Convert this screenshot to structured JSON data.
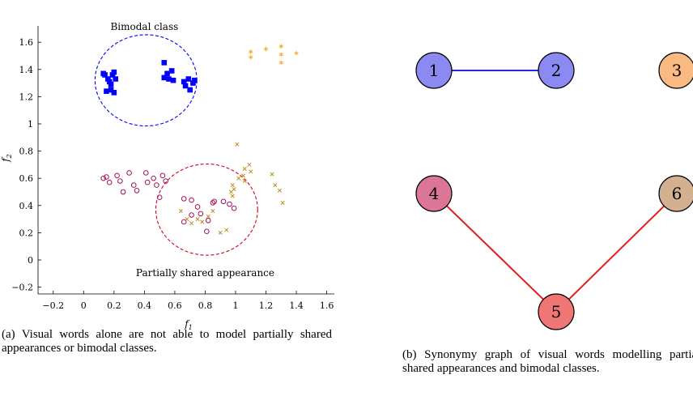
{
  "chart_data": [
    {
      "type": "scatter",
      "title": "",
      "xlabel": "f1",
      "ylabel": "f2",
      "xlim": [
        -0.3,
        1.65
      ],
      "ylim": [
        -0.25,
        1.72
      ],
      "xticks": [
        -0.2,
        0,
        0.2,
        0.4,
        0.6,
        0.8,
        1,
        1.2,
        1.4,
        1.6
      ],
      "yticks": [
        -0.2,
        0,
        0.2,
        0.4,
        0.6,
        0.8,
        1,
        1.2,
        1.4,
        1.6
      ],
      "xtick_labels": [
        "−0.2",
        "0",
        "0.2",
        "0.4",
        "0.6",
        "0.8",
        "1",
        "1.2",
        "1.4",
        "1.6"
      ],
      "ytick_labels": [
        "−0.2",
        "0",
        "0.2",
        "0.4",
        "0.6",
        "0.8",
        "1",
        "1.2",
        "1.4",
        "1.6"
      ],
      "grid": false,
      "annotations": [
        {
          "text": "Bimodal class",
          "x": 0.4,
          "y": 1.69
        },
        {
          "text": "Partially shared appearance",
          "x": 0.8,
          "y": -0.12
        }
      ],
      "circles": [
        {
          "cx": 0.41,
          "cy": 1.32,
          "r": 0.335,
          "color": "#0000ff",
          "style": "dashed"
        },
        {
          "cx": 0.81,
          "cy": 0.37,
          "r": 0.335,
          "color": "#d0021b",
          "style": "dashed"
        }
      ],
      "series": [
        {
          "marker": "square",
          "color": "#0000ff",
          "points": [
            [
              0.14,
              1.36
            ],
            [
              0.16,
              1.33
            ],
            [
              0.19,
              1.36
            ],
            [
              0.2,
              1.38
            ],
            [
              0.17,
              1.31
            ],
            [
              0.21,
              1.33
            ],
            [
              0.18,
              1.29
            ],
            [
              0.15,
              1.24
            ],
            [
              0.18,
              1.25
            ],
            [
              0.2,
              1.23
            ],
            [
              0.13,
              1.37
            ],
            [
              0.53,
              1.45
            ],
            [
              0.55,
              1.37
            ],
            [
              0.58,
              1.39
            ],
            [
              0.53,
              1.34
            ],
            [
              0.56,
              1.33
            ],
            [
              0.59,
              1.32
            ],
            [
              0.66,
              1.31
            ],
            [
              0.69,
              1.33
            ],
            [
              0.72,
              1.3
            ],
            [
              0.73,
              1.32
            ],
            [
              0.67,
              1.28
            ],
            [
              0.7,
              1.25
            ]
          ]
        },
        {
          "marker": "asterisk",
          "color": "#f5a623",
          "points": [
            [
              1.1,
              1.53
            ],
            [
              1.2,
              1.55
            ],
            [
              1.3,
              1.57
            ],
            [
              1.3,
              1.51
            ],
            [
              1.4,
              1.52
            ],
            [
              1.1,
              1.49
            ],
            [
              1.3,
              1.45
            ]
          ]
        },
        {
          "marker": "circle",
          "color": "#a3125a",
          "points": [
            [
              0.15,
              0.61
            ],
            [
              0.17,
              0.57
            ],
            [
              0.13,
              0.6
            ],
            [
              0.22,
              0.62
            ],
            [
              0.24,
              0.58
            ],
            [
              0.26,
              0.5
            ],
            [
              0.3,
              0.64
            ],
            [
              0.33,
              0.55
            ],
            [
              0.35,
              0.51
            ],
            [
              0.41,
              0.64
            ],
            [
              0.42,
              0.57
            ],
            [
              0.46,
              0.6
            ],
            [
              0.48,
              0.55
            ],
            [
              0.52,
              0.62
            ],
            [
              0.54,
              0.58
            ],
            [
              0.5,
              0.46
            ],
            [
              0.66,
              0.45
            ],
            [
              0.71,
              0.44
            ],
            [
              0.75,
              0.39
            ],
            [
              0.77,
              0.34
            ],
            [
              0.82,
              0.29
            ],
            [
              0.85,
              0.42
            ],
            [
              0.86,
              0.43
            ],
            [
              0.92,
              0.43
            ],
            [
              0.96,
              0.41
            ],
            [
              0.99,
              0.38
            ],
            [
              0.81,
              0.21
            ],
            [
              0.71,
              0.33
            ],
            [
              0.66,
              0.28
            ]
          ]
        },
        {
          "marker": "x",
          "color": "#b8860b",
          "points": [
            [
              1.01,
              0.85
            ],
            [
              1.06,
              0.67
            ],
            [
              1.09,
              0.7
            ],
            [
              1.1,
              0.65
            ],
            [
              1.05,
              0.62
            ],
            [
              1.06,
              0.58
            ],
            [
              1.02,
              0.6
            ],
            [
              0.98,
              0.55
            ],
            [
              0.97,
              0.5
            ],
            [
              0.99,
              0.52
            ],
            [
              0.98,
              0.47
            ],
            [
              1.24,
              0.63
            ],
            [
              1.26,
              0.55
            ],
            [
              1.29,
              0.51
            ],
            [
              1.31,
              0.42
            ],
            [
              0.85,
              0.36
            ],
            [
              0.82,
              0.32
            ],
            [
              0.78,
              0.28
            ],
            [
              0.75,
              0.3
            ],
            [
              0.71,
              0.27
            ],
            [
              0.68,
              0.3
            ],
            [
              0.64,
              0.36
            ],
            [
              0.9,
              0.2
            ],
            [
              0.94,
              0.22
            ]
          ]
        }
      ]
    },
    {
      "type": "graph",
      "nodes": [
        {
          "label": "1",
          "color": "#8a8af2"
        },
        {
          "label": "2",
          "color": "#8a8af2"
        },
        {
          "label": "3",
          "color": "#fbba82"
        },
        {
          "label": "4",
          "color": "#db7696"
        },
        {
          "label": "5",
          "color": "#f07575"
        },
        {
          "label": "6",
          "color": "#d3b08f"
        }
      ],
      "edges": [
        {
          "from": "1",
          "to": "2",
          "color": "#1c2be6"
        },
        {
          "from": "4",
          "to": "5",
          "color": "#e31c1c"
        },
        {
          "from": "5",
          "to": "6",
          "color": "#e31c1c"
        }
      ]
    }
  ],
  "captions": {
    "a": "(a) Visual words alone are not able to model partially shared appearances or bimodal classes.",
    "b": "(b) Synonymy graph of visual words modelling partially shared appearances and bimodal classes."
  }
}
